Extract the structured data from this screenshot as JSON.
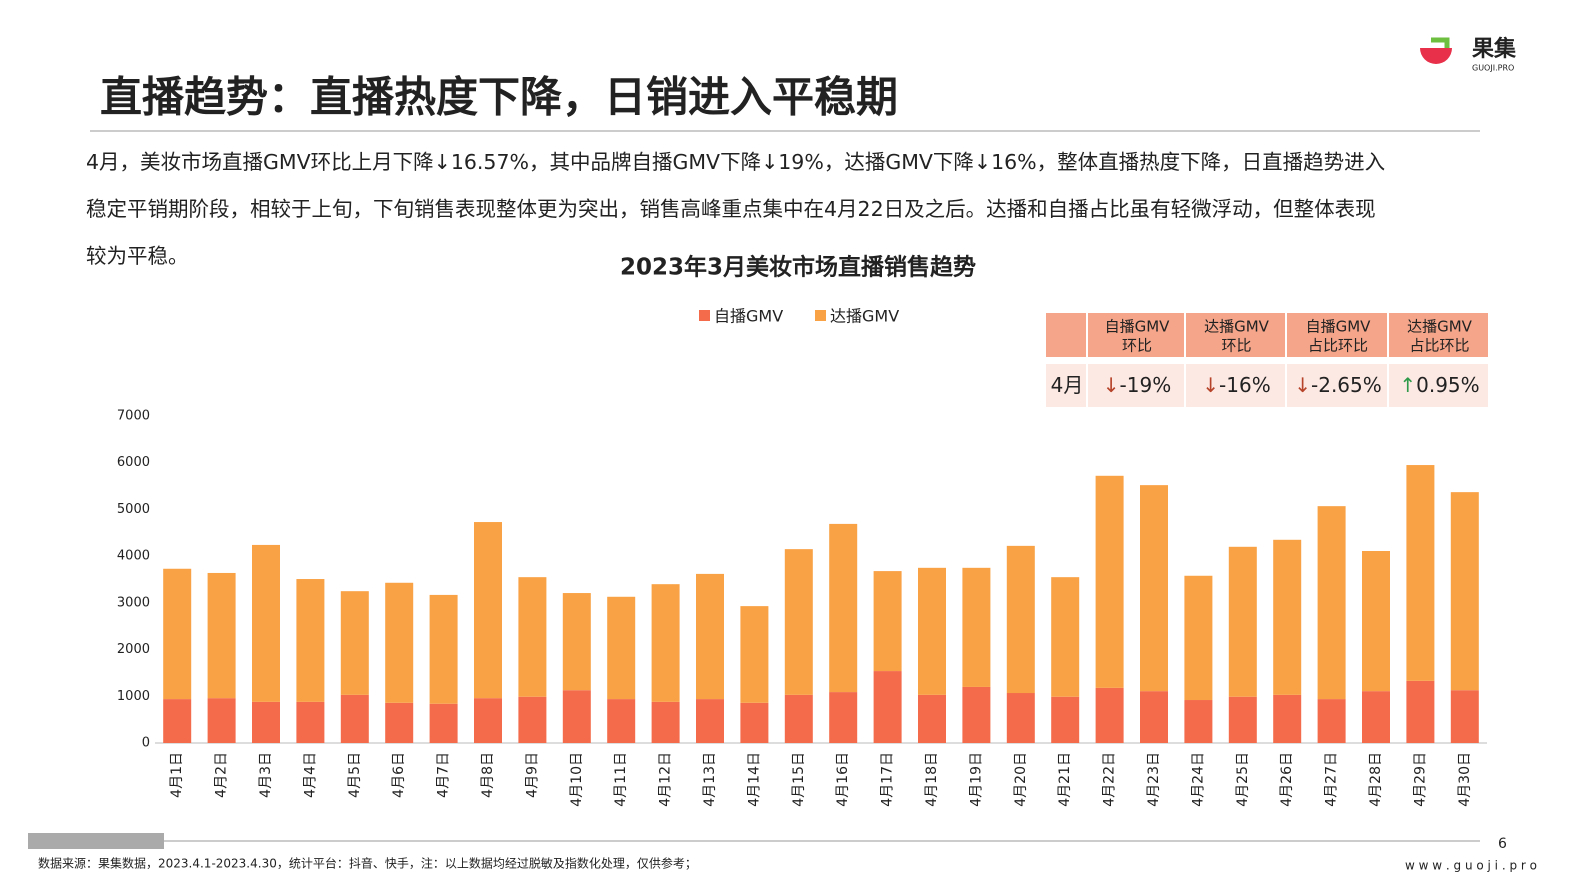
{
  "header": {
    "title": "直播趋势：直播热度下降，日销进入平稳期",
    "logo": "果集",
    "logo_sub": "GUOJI.PRO"
  },
  "paragraph": [
    "4月，美妆市场直播GMV环比上月下降↓16.57%，其中品牌自播GMV下降↓19%，达播GMV下降↓16%，整体直播热度下降，日直播趋势进入",
    "稳定平销期阶段，相较于上旬，下旬销售表现整体更为突出，销售高峰重点集中在4月22日及之后。达播和自播占比虽有轻微浮动，但整体表现",
    "较为平稳。"
  ],
  "chart_data": {
    "type": "stacked-bar",
    "title": "2023年3月美妆市场直播销售趋势",
    "categories": [
      "4月1日",
      "4月2日",
      "4月3日",
      "4月4日",
      "4月5日",
      "4月6日",
      "4月7日",
      "4月8日",
      "4月9日",
      "4月10日",
      "4月11日",
      "4月12日",
      "4月13日",
      "4月14日",
      "4月15日",
      "4月16日",
      "4月17日",
      "4月18日",
      "4月19日",
      "4月20日",
      "4月21日",
      "4月22日",
      "4月23日",
      "4月24日",
      "4月25日",
      "4月26日",
      "4月27日",
      "4月28日",
      "4月29日",
      "4月30日"
    ],
    "series": [
      {
        "name": "自播GMV",
        "color": "#f46b4b",
        "values": [
          940,
          960,
          880,
          880,
          1030,
          860,
          840,
          960,
          990,
          1130,
          940,
          880,
          940,
          860,
          1030,
          1090,
          1540,
          1030,
          1200,
          1070,
          990,
          1180,
          1110,
          920,
          990,
          1030,
          940,
          1110,
          1330,
          1130
        ]
      },
      {
        "name": "达播GMV",
        "color": "#f9a245",
        "values": [
          2790,
          2680,
          3360,
          2630,
          2220,
          2570,
          2330,
          3770,
          2560,
          2080,
          2190,
          2520,
          2680,
          2070,
          3120,
          3600,
          2140,
          2720,
          2550,
          3150,
          2560,
          4540,
          4410,
          2660,
          3210,
          3320,
          4130,
          3000,
          4620,
          4240
        ]
      }
    ],
    "ylim": [
      0,
      7000
    ],
    "yticks": [
      0,
      1000,
      2000,
      3000,
      4000,
      5000,
      6000,
      7000
    ],
    "grid": false
  },
  "table": {
    "header": [
      [],
      [
        "自播GMV",
        "环比"
      ],
      [
        "达播GMV",
        "环比"
      ],
      [
        "自播GMV",
        "占比环比"
      ],
      [
        "达播GMV",
        "占比环比"
      ]
    ],
    "row": [
      {
        "text": "4月"
      },
      {
        "arrow": "↓",
        "text": "-19%",
        "color": "#b5442a"
      },
      {
        "arrow": "↓",
        "text": "-16%",
        "color": "#b5442a"
      },
      {
        "arrow": "↓",
        "text": "-2.65%",
        "color": "#b5442a"
      },
      {
        "arrow": "↑",
        "text": "0.95%",
        "color": "#2e9a4a"
      }
    ]
  },
  "footer": {
    "source": "数据来源：果集数据，2023.4.1-2023.4.30，统计平台：抖音、快手，注：以上数据均经过脱敏及指数化处理，仅供参考；",
    "page": "6",
    "site": "w w w . g u o j i . p r o"
  }
}
